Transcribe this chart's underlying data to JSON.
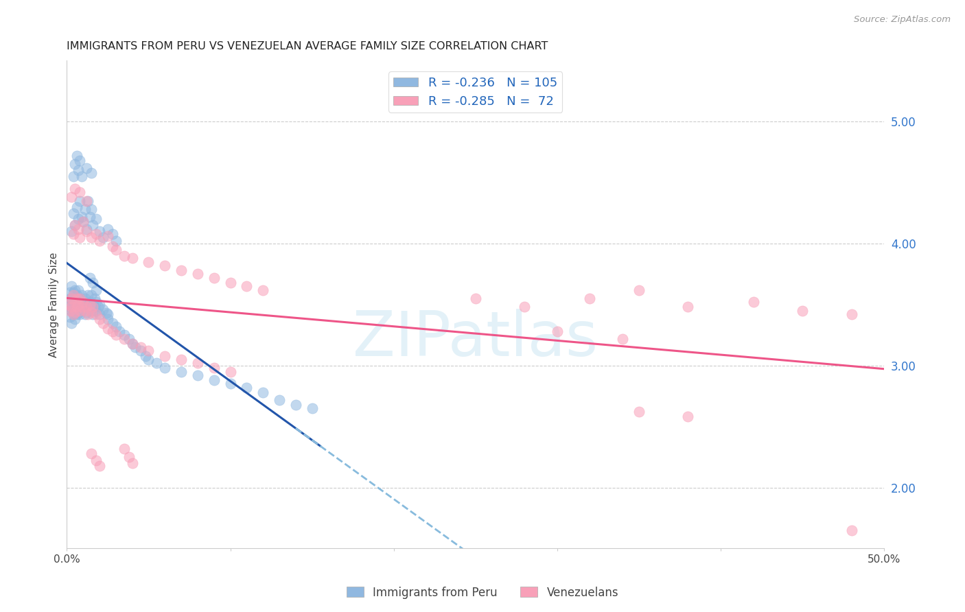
{
  "title": "IMMIGRANTS FROM PERU VS VENEZUELAN AVERAGE FAMILY SIZE CORRELATION CHART",
  "source": "Source: ZipAtlas.com",
  "ylabel": "Average Family Size",
  "right_yticks": [
    2.0,
    3.0,
    4.0,
    5.0
  ],
  "bottom_legend_blue": "Immigrants from Peru",
  "bottom_legend_pink": "Venezuelans",
  "watermark": "ZIPatlas",
  "blue_scatter_color": "#90B8E0",
  "pink_scatter_color": "#F8A0B8",
  "blue_line_color": "#2255AA",
  "pink_line_color": "#EE5588",
  "dashed_line_color": "#88BBDD",
  "xlim": [
    0.0,
    0.5
  ],
  "ylim": [
    1.5,
    5.5
  ],
  "seed": 42,
  "peru_scatter": [
    [
      0.001,
      3.52
    ],
    [
      0.001,
      3.48
    ],
    [
      0.002,
      3.55
    ],
    [
      0.002,
      3.4
    ],
    [
      0.002,
      3.6
    ],
    [
      0.003,
      3.45
    ],
    [
      0.003,
      3.55
    ],
    [
      0.003,
      3.65
    ],
    [
      0.003,
      3.35
    ],
    [
      0.004,
      3.5
    ],
    [
      0.004,
      3.42
    ],
    [
      0.004,
      3.6
    ],
    [
      0.004,
      3.48
    ],
    [
      0.005,
      3.55
    ],
    [
      0.005,
      3.45
    ],
    [
      0.005,
      3.38
    ],
    [
      0.005,
      3.62
    ],
    [
      0.006,
      3.5
    ],
    [
      0.006,
      3.42
    ],
    [
      0.006,
      3.58
    ],
    [
      0.006,
      3.48
    ],
    [
      0.007,
      3.52
    ],
    [
      0.007,
      3.44
    ],
    [
      0.007,
      3.62
    ],
    [
      0.008,
      3.55
    ],
    [
      0.008,
      3.48
    ],
    [
      0.008,
      3.42
    ],
    [
      0.009,
      3.5
    ],
    [
      0.009,
      3.45
    ],
    [
      0.009,
      3.58
    ],
    [
      0.01,
      3.52
    ],
    [
      0.01,
      3.48
    ],
    [
      0.011,
      3.55
    ],
    [
      0.011,
      3.42
    ],
    [
      0.012,
      3.5
    ],
    [
      0.012,
      3.44
    ],
    [
      0.013,
      3.48
    ],
    [
      0.013,
      3.58
    ],
    [
      0.014,
      3.52
    ],
    [
      0.015,
      3.45
    ],
    [
      0.015,
      3.58
    ],
    [
      0.016,
      3.5
    ],
    [
      0.016,
      3.42
    ],
    [
      0.017,
      3.48
    ],
    [
      0.017,
      3.55
    ],
    [
      0.018,
      3.45
    ],
    [
      0.018,
      3.52
    ],
    [
      0.019,
      3.48
    ],
    [
      0.02,
      3.5
    ],
    [
      0.02,
      3.42
    ],
    [
      0.022,
      3.46
    ],
    [
      0.024,
      3.43
    ],
    [
      0.025,
      3.38
    ],
    [
      0.025,
      3.42
    ],
    [
      0.028,
      3.35
    ],
    [
      0.03,
      3.32
    ],
    [
      0.032,
      3.28
    ],
    [
      0.035,
      3.25
    ],
    [
      0.038,
      3.22
    ],
    [
      0.04,
      3.18
    ],
    [
      0.042,
      3.15
    ],
    [
      0.045,
      3.12
    ],
    [
      0.048,
      3.08
    ],
    [
      0.05,
      3.05
    ],
    [
      0.055,
      3.02
    ],
    [
      0.06,
      2.98
    ],
    [
      0.07,
      2.95
    ],
    [
      0.08,
      2.92
    ],
    [
      0.09,
      2.88
    ],
    [
      0.1,
      2.85
    ],
    [
      0.11,
      2.82
    ],
    [
      0.12,
      2.78
    ],
    [
      0.13,
      2.72
    ],
    [
      0.14,
      2.68
    ],
    [
      0.15,
      2.65
    ],
    [
      0.003,
      4.1
    ],
    [
      0.004,
      4.25
    ],
    [
      0.005,
      4.15
    ],
    [
      0.006,
      4.3
    ],
    [
      0.007,
      4.2
    ],
    [
      0.008,
      4.35
    ],
    [
      0.009,
      4.22
    ],
    [
      0.01,
      4.18
    ],
    [
      0.011,
      4.28
    ],
    [
      0.012,
      4.12
    ],
    [
      0.013,
      4.35
    ],
    [
      0.014,
      4.22
    ],
    [
      0.015,
      4.28
    ],
    [
      0.016,
      4.15
    ],
    [
      0.018,
      4.2
    ],
    [
      0.02,
      4.1
    ],
    [
      0.022,
      4.05
    ],
    [
      0.025,
      4.12
    ],
    [
      0.028,
      4.08
    ],
    [
      0.03,
      4.02
    ],
    [
      0.004,
      4.55
    ],
    [
      0.005,
      4.65
    ],
    [
      0.006,
      4.72
    ],
    [
      0.007,
      4.6
    ],
    [
      0.008,
      4.68
    ],
    [
      0.009,
      4.55
    ],
    [
      0.012,
      4.62
    ],
    [
      0.015,
      4.58
    ],
    [
      0.014,
      3.72
    ],
    [
      0.016,
      3.68
    ],
    [
      0.018,
      3.62
    ]
  ],
  "venezuela_scatter": [
    [
      0.001,
      3.5
    ],
    [
      0.002,
      3.45
    ],
    [
      0.003,
      3.55
    ],
    [
      0.003,
      3.48
    ],
    [
      0.004,
      3.42
    ],
    [
      0.004,
      3.58
    ],
    [
      0.005,
      3.52
    ],
    [
      0.005,
      3.44
    ],
    [
      0.006,
      3.48
    ],
    [
      0.006,
      3.55
    ],
    [
      0.007,
      3.5
    ],
    [
      0.008,
      3.45
    ],
    [
      0.008,
      3.55
    ],
    [
      0.009,
      3.48
    ],
    [
      0.01,
      3.52
    ],
    [
      0.011,
      3.45
    ],
    [
      0.012,
      3.48
    ],
    [
      0.013,
      3.42
    ],
    [
      0.014,
      3.5
    ],
    [
      0.015,
      3.44
    ],
    [
      0.016,
      3.48
    ],
    [
      0.018,
      3.42
    ],
    [
      0.02,
      3.38
    ],
    [
      0.022,
      3.35
    ],
    [
      0.025,
      3.3
    ],
    [
      0.028,
      3.28
    ],
    [
      0.03,
      3.25
    ],
    [
      0.035,
      3.22
    ],
    [
      0.04,
      3.18
    ],
    [
      0.045,
      3.15
    ],
    [
      0.05,
      3.12
    ],
    [
      0.06,
      3.08
    ],
    [
      0.07,
      3.05
    ],
    [
      0.08,
      3.02
    ],
    [
      0.09,
      2.98
    ],
    [
      0.1,
      2.95
    ],
    [
      0.004,
      4.08
    ],
    [
      0.005,
      4.15
    ],
    [
      0.007,
      4.12
    ],
    [
      0.008,
      4.05
    ],
    [
      0.01,
      4.18
    ],
    [
      0.012,
      4.1
    ],
    [
      0.015,
      4.05
    ],
    [
      0.018,
      4.08
    ],
    [
      0.02,
      4.02
    ],
    [
      0.025,
      4.06
    ],
    [
      0.028,
      3.98
    ],
    [
      0.03,
      3.95
    ],
    [
      0.035,
      3.9
    ],
    [
      0.04,
      3.88
    ],
    [
      0.05,
      3.85
    ],
    [
      0.06,
      3.82
    ],
    [
      0.07,
      3.78
    ],
    [
      0.08,
      3.75
    ],
    [
      0.09,
      3.72
    ],
    [
      0.1,
      3.68
    ],
    [
      0.11,
      3.65
    ],
    [
      0.12,
      3.62
    ],
    [
      0.003,
      4.38
    ],
    [
      0.005,
      4.45
    ],
    [
      0.008,
      4.42
    ],
    [
      0.012,
      4.35
    ],
    [
      0.015,
      2.28
    ],
    [
      0.018,
      2.22
    ],
    [
      0.02,
      2.18
    ],
    [
      0.035,
      2.32
    ],
    [
      0.038,
      2.25
    ],
    [
      0.04,
      2.2
    ],
    [
      0.32,
      3.55
    ],
    [
      0.35,
      3.62
    ],
    [
      0.38,
      3.48
    ],
    [
      0.42,
      3.52
    ],
    [
      0.45,
      3.45
    ],
    [
      0.48,
      3.42
    ],
    [
      0.35,
      2.62
    ],
    [
      0.38,
      2.58
    ],
    [
      0.3,
      3.28
    ],
    [
      0.34,
      3.22
    ],
    [
      0.25,
      3.55
    ],
    [
      0.28,
      3.48
    ],
    [
      0.48,
      1.65
    ]
  ]
}
